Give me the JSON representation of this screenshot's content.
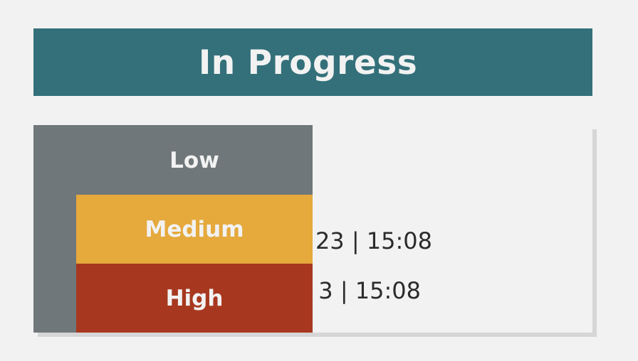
{
  "header": {
    "title": "In Progress"
  },
  "card": {
    "lines": [
      {
        "visible_text": "23 | 15:08"
      },
      {
        "visible_text": "3 | 15:08"
      }
    ]
  },
  "priority_menu": {
    "options": [
      {
        "label": "Low",
        "color": "#6f777a"
      },
      {
        "label": "Medium",
        "color": "#e5a93c"
      },
      {
        "label": "High",
        "color": "#a7381f"
      }
    ]
  },
  "colors": {
    "header_bg": "#33707a",
    "page_bg": "#f2f2f2",
    "card_shadow": "#d6d6d6",
    "text": "#2b2b2b"
  }
}
